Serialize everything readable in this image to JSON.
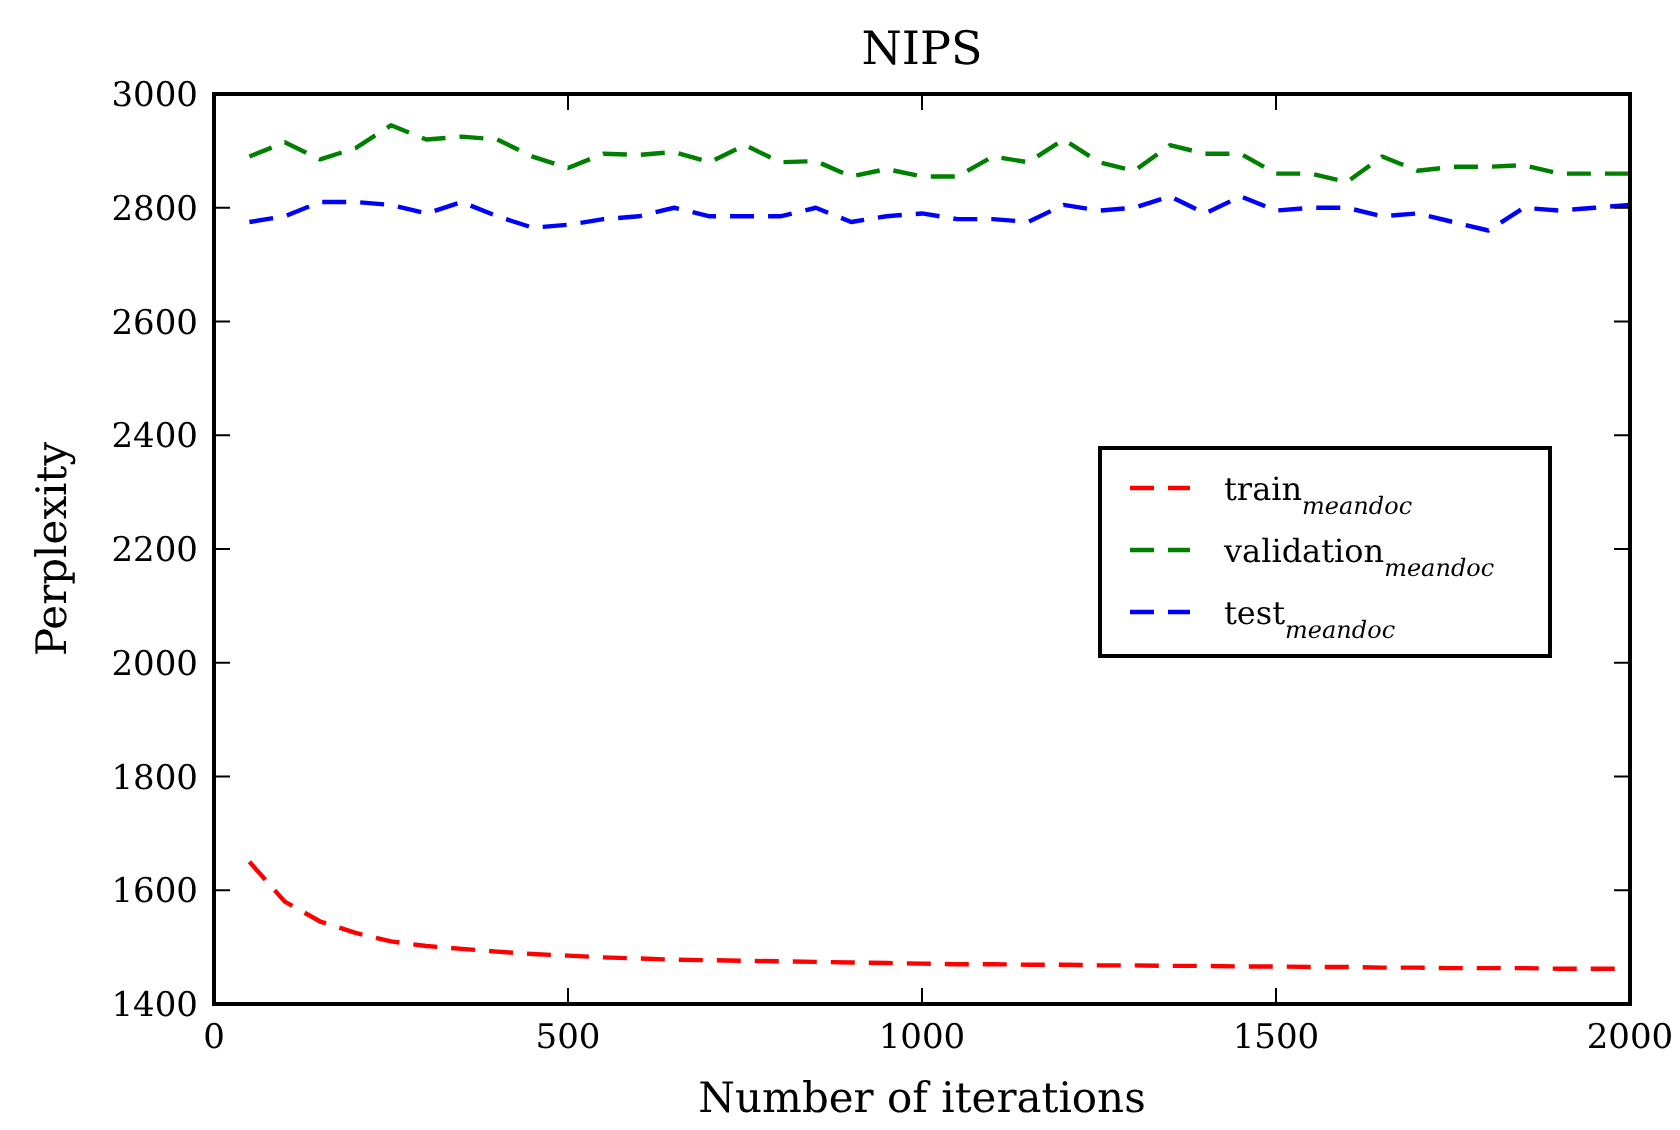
{
  "chart_data": {
    "type": "line",
    "title": "NIPS",
    "xlabel": "Number of iterations",
    "ylabel": "Perplexity",
    "x": [
      50,
      100,
      150,
      200,
      250,
      300,
      350,
      400,
      450,
      500,
      550,
      600,
      650,
      700,
      750,
      800,
      850,
      900,
      950,
      1000,
      1050,
      1100,
      1150,
      1200,
      1250,
      1300,
      1350,
      1400,
      1450,
      1500,
      1550,
      1600,
      1650,
      1700,
      1750,
      1800,
      1850,
      1900,
      1950,
      2000
    ],
    "series": [
      {
        "name": "train$_{meandoc}$",
        "color": "#ff0000",
        "values": [
          1650,
          1580,
          1545,
          1525,
          1510,
          1502,
          1497,
          1492,
          1488,
          1485,
          1482,
          1480,
          1478,
          1477,
          1476,
          1475,
          1474,
          1473,
          1472,
          1471,
          1470,
          1470,
          1469,
          1469,
          1468,
          1468,
          1467,
          1467,
          1466,
          1466,
          1465,
          1465,
          1464,
          1464,
          1463,
          1463,
          1463,
          1462,
          1462,
          1462
        ]
      },
      {
        "name": "validation$_{meandoc}$",
        "color": "#008000",
        "values": [
          2890,
          2915,
          2885,
          2905,
          2945,
          2920,
          2925,
          2920,
          2890,
          2870,
          2895,
          2893,
          2898,
          2880,
          2910,
          2880,
          2882,
          2855,
          2868,
          2855,
          2855,
          2890,
          2880,
          2920,
          2880,
          2865,
          2910,
          2895,
          2895,
          2860,
          2860,
          2845,
          2890,
          2865,
          2872,
          2872,
          2875,
          2860,
          2860,
          2860
        ]
      },
      {
        "name": "test$_{meandoc}$",
        "color": "#0000ff",
        "values": [
          2775,
          2785,
          2810,
          2810,
          2805,
          2790,
          2810,
          2785,
          2765,
          2770,
          2780,
          2785,
          2800,
          2785,
          2785,
          2785,
          2800,
          2775,
          2785,
          2790,
          2780,
          2780,
          2775,
          2805,
          2795,
          2800,
          2820,
          2790,
          2820,
          2795,
          2800,
          2800,
          2785,
          2790,
          2775,
          2760,
          2800,
          2795,
          2800,
          2805
        ]
      }
    ],
    "xlim": [
      0,
      2000
    ],
    "xticks": [
      0,
      500,
      1000,
      1500,
      2000
    ],
    "ylim": [
      1400,
      3000
    ],
    "yticks": [
      1400,
      1600,
      1800,
      2000,
      2200,
      2400,
      2600,
      2800,
      3000
    ],
    "grid": false,
    "legend": "center right",
    "line_style": "dashed",
    "marker": "none"
  }
}
